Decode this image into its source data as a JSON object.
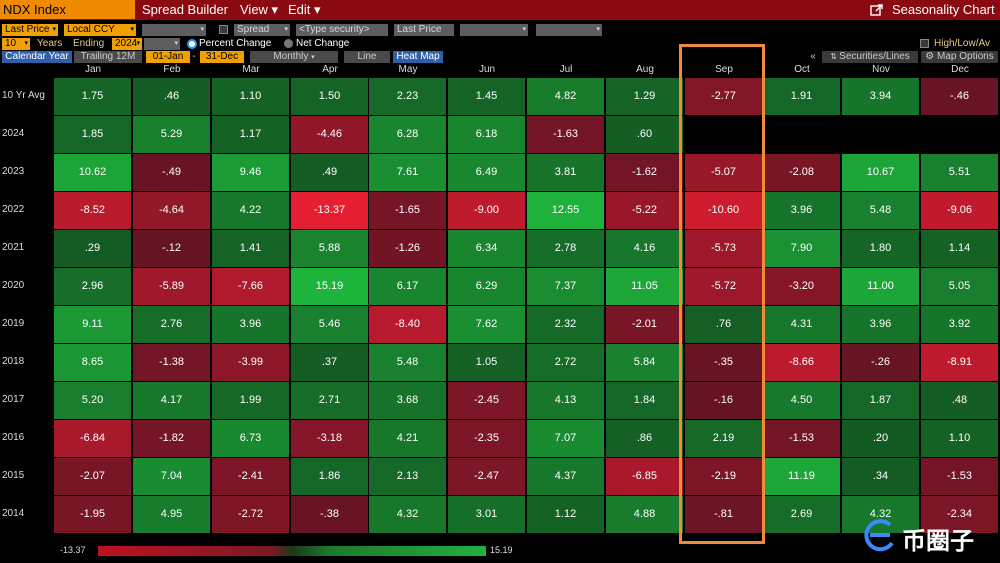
{
  "topbar": {
    "security": "NDX Index",
    "menu": [
      "Spread Builder",
      "View ▾",
      "Edit ▾"
    ],
    "chart_title": "Seasonality Chart"
  },
  "controls": {
    "field": "Last Price",
    "currency": "Local CCY",
    "spread": "Spread",
    "type_security": "<Type security>",
    "field2": "Last Price",
    "years": "10",
    "years_label": "Years",
    "ending_label": "Ending",
    "ending_year": "2024",
    "percent_change": "Percent Change",
    "net_change": "Net Change",
    "high_low_avg": "High/Low/Av"
  },
  "tabs": {
    "calendar_year": "Calendar Year",
    "trailing": "Trailing 12M",
    "from": "01-Jan",
    "to": "31-Dec",
    "period": "Monthly",
    "line": "Line",
    "heat_map": "Heat Map",
    "collapse": "«",
    "securities": "Securities/Lines",
    "map_options": "Map Options"
  },
  "months": [
    "Jan",
    "Feb",
    "Mar",
    "Apr",
    "May",
    "Jun",
    "Jul",
    "Aug",
    "Sep",
    "Oct",
    "Nov",
    "Dec"
  ],
  "rows": [
    {
      "label": "10 Yr Avg",
      "values": [
        "1.75",
        ".46",
        "1.10",
        "1.50",
        "2.23",
        "1.45",
        "4.82",
        "1.29",
        "-2.77",
        "1.91",
        "3.94",
        "-.46"
      ]
    },
    {
      "label": "2024",
      "values": [
        "1.85",
        "5.29",
        "1.17",
        "-4.46",
        "6.28",
        "6.18",
        "-1.63",
        ".60",
        "",
        "",
        "",
        ""
      ]
    },
    {
      "label": "2023",
      "values": [
        "10.62",
        "-.49",
        "9.46",
        ".49",
        "7.61",
        "6.49",
        "3.81",
        "-1.62",
        "-5.07",
        "-2.08",
        "10.67",
        "5.51"
      ]
    },
    {
      "label": "2022",
      "values": [
        "-8.52",
        "-4.64",
        "4.22",
        "-13.37",
        "-1.65",
        "-9.00",
        "12.55",
        "-5.22",
        "-10.60",
        "3.96",
        "5.48",
        "-9.06"
      ]
    },
    {
      "label": "2021",
      "values": [
        ".29",
        "-.12",
        "1.41",
        "5.88",
        "-1.26",
        "6.34",
        "2.78",
        "4.16",
        "-5.73",
        "7.90",
        "1.80",
        "1.14"
      ]
    },
    {
      "label": "2020",
      "values": [
        "2.96",
        "-5.89",
        "-7.66",
        "15.19",
        "6.17",
        "6.29",
        "7.37",
        "11.05",
        "-5.72",
        "-3.20",
        "11.00",
        "5.05"
      ]
    },
    {
      "label": "2019",
      "values": [
        "9.11",
        "2.76",
        "3.96",
        "5.46",
        "-8.40",
        "7.62",
        "2.32",
        "-2.01",
        ".76",
        "4.31",
        "3.96",
        "3.92"
      ]
    },
    {
      "label": "2018",
      "values": [
        "8.65",
        "-1.38",
        "-3.99",
        ".37",
        "5.48",
        "1.05",
        "2.72",
        "5.84",
        "-.35",
        "-8.66",
        "-.26",
        "-8.91"
      ]
    },
    {
      "label": "2017",
      "values": [
        "5.20",
        "4.17",
        "1.99",
        "2.71",
        "3.68",
        "-2.45",
        "4.13",
        "1.84",
        "-.16",
        "4.50",
        "1.87",
        ".48"
      ]
    },
    {
      "label": "2016",
      "values": [
        "-6.84",
        "-1.82",
        "6.73",
        "-3.18",
        "4.21",
        "-2.35",
        "7.07",
        ".86",
        "2.19",
        "-1.53",
        ".20",
        "1.10"
      ]
    },
    {
      "label": "2015",
      "values": [
        "-2.07",
        "7.04",
        "-2.41",
        "1.86",
        "2.13",
        "-2.47",
        "4.37",
        "-6.85",
        "-2.19",
        "11.19",
        ".34",
        "-1.53"
      ]
    },
    {
      "label": "2014",
      "values": [
        "-1.95",
        "4.95",
        "-2.72",
        "-.38",
        "4.32",
        "3.01",
        "1.12",
        "4.88",
        "-.81",
        "2.69",
        "4.32",
        "-2.34"
      ]
    }
  ],
  "legend": {
    "min": "-13.37",
    "max": "15.19"
  },
  "watermark": "币圈子",
  "colors": {
    "accent": "#f08a00",
    "highlight": "#f08a3c",
    "positive": "#1e9a2e",
    "negative": "#8a1424"
  }
}
